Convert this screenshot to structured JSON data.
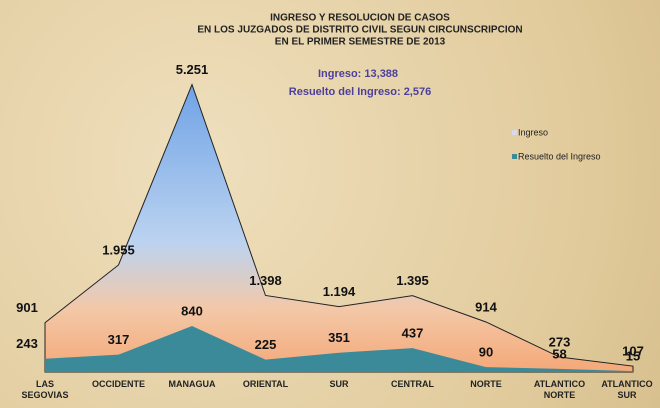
{
  "chart_data": {
    "type": "area",
    "title": [
      "INGRESO Y RESOLUCION DE CASOS",
      "EN LOS JUZGADOS DE DISTRITO CIVIL SEGUN CIRCUNSCRIPCION",
      "EN EL PRIMER SEMESTRE DE 2013"
    ],
    "annotations": [
      "Ingreso: 13,388",
      "Resuelto del Ingreso: 2,576"
    ],
    "categories": [
      "LAS SEGOVIAS",
      "OCCIDENTE",
      "MANAGUA",
      "ORIENTAL",
      "SUR",
      "CENTRAL",
      "NORTE",
      "ATLANTICO NORTE",
      "ATLANTICO SUR"
    ],
    "series": [
      {
        "name": "Ingreso",
        "color": "#8fb8ea",
        "values": [
          901,
          1955,
          5251,
          1398,
          1194,
          1395,
          914,
          273,
          107
        ],
        "value_labels": [
          "901",
          "1.955",
          "5.251",
          "1.398",
          "1.194",
          "1.395",
          "914",
          "273",
          "107"
        ]
      },
      {
        "name": "Resuelto del Ingreso",
        "color": "#3b8a99",
        "values": [
          243,
          317,
          840,
          225,
          351,
          437,
          90,
          58,
          15
        ]
      }
    ],
    "ylim": [
      0,
      5700
    ],
    "legend": "right"
  }
}
